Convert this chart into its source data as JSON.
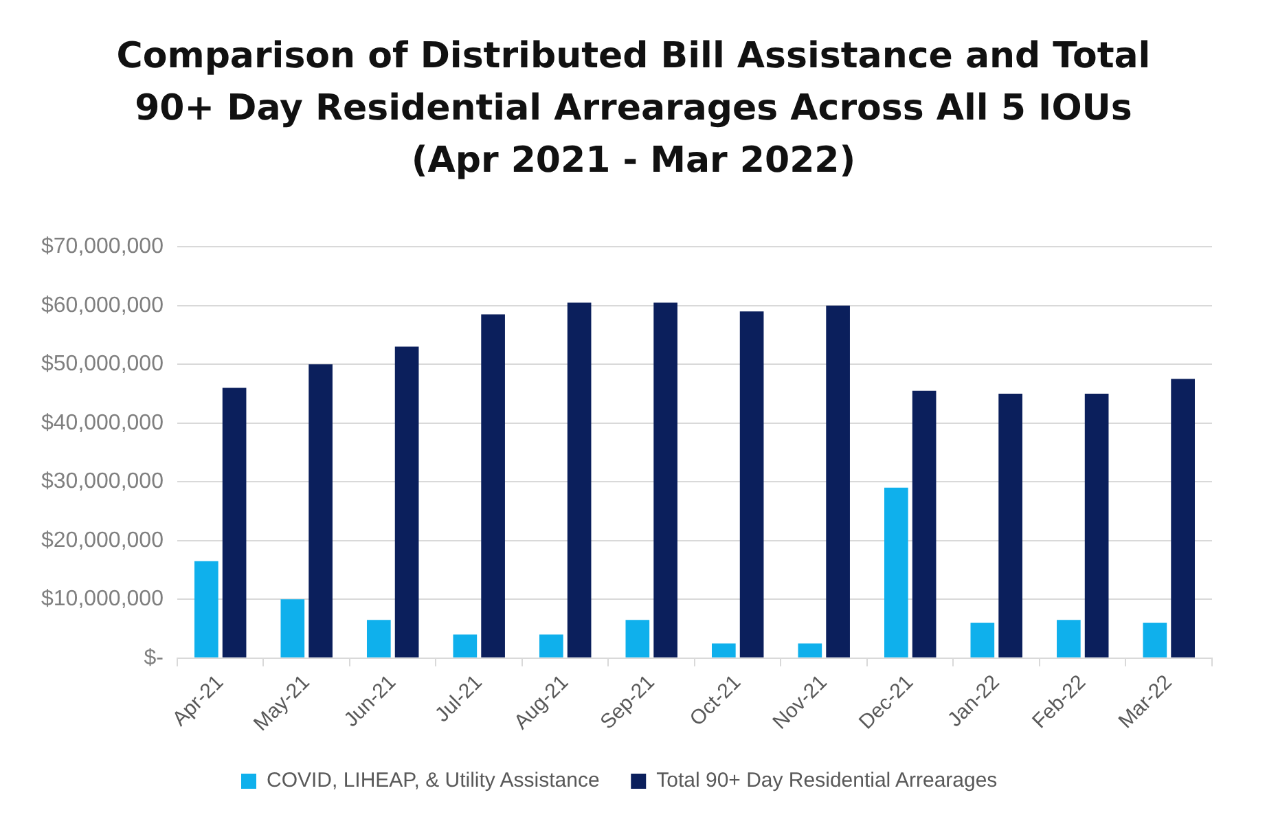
{
  "chart_data": {
    "type": "bar",
    "title": "Comparison of Distributed Bill Assistance and Total 90+ Day Residential Arrearages Across All 5 IOUs (Apr 2021 - Mar 2022)",
    "categories": [
      "Apr-21",
      "May-21",
      "Jun-21",
      "Jul-21",
      "Aug-21",
      "Sep-21",
      "Oct-21",
      "Nov-21",
      "Dec-21",
      "Jan-22",
      "Feb-22",
      "Mar-22"
    ],
    "series": [
      {
        "name": "COVID, LIHEAP, & Utility Assistance",
        "color": "#0fb0ec",
        "values": [
          16500000,
          10000000,
          6500000,
          4000000,
          4000000,
          6500000,
          2500000,
          2500000,
          29000000,
          6000000,
          6500000,
          6000000
        ]
      },
      {
        "name": "Total 90+ Day Residential Arrearages",
        "color": "#0b1f5c",
        "values": [
          46000000,
          50000000,
          53000000,
          58500000,
          60500000,
          60500000,
          59000000,
          60000000,
          45500000,
          45000000,
          45000000,
          47500000
        ]
      }
    ],
    "ylim": [
      0,
      70000000
    ],
    "yticks": [
      {
        "value": 0,
        "label": "$-"
      },
      {
        "value": 10000000,
        "label": "$10,000,000"
      },
      {
        "value": 20000000,
        "label": "$20,000,000"
      },
      {
        "value": 30000000,
        "label": "$30,000,000"
      },
      {
        "value": 40000000,
        "label": "$40,000,000"
      },
      {
        "value": 50000000,
        "label": "$50,000,000"
      },
      {
        "value": 60000000,
        "label": "$60,000,000"
      },
      {
        "value": 70000000,
        "label": "$70,000,000"
      }
    ],
    "grid": "y",
    "legend": "bottom"
  }
}
